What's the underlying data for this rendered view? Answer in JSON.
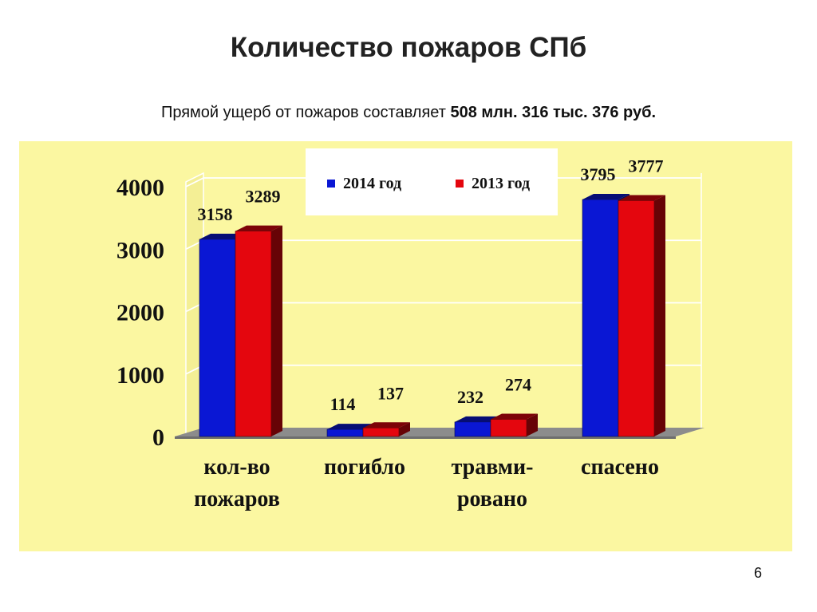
{
  "slide": {
    "title": "Количество пожаров СПб",
    "subtitle_prefix": "Прямой ущерб от пожаров составляет ",
    "subtitle_value": "508 млн. 316 тыс. 376 руб.",
    "page_number": "6"
  },
  "chart_data": {
    "type": "bar",
    "categories": [
      [
        "кол-во",
        "пожаров"
      ],
      [
        "погибло"
      ],
      [
        "травми-",
        "ровано"
      ],
      [
        "спасено"
      ]
    ],
    "series": [
      {
        "name": "2014 год",
        "color": "#0a17d4",
        "values": [
          3158,
          114,
          232,
          3795
        ]
      },
      {
        "name": "2013 год",
        "color": "#e4060e",
        "values": [
          3289,
          137,
          274,
          3777
        ]
      }
    ],
    "yticks": [
      0,
      1000,
      2000,
      3000,
      4000
    ],
    "ylim": [
      0,
      4000
    ],
    "grid": true,
    "legend_position": "top",
    "panel_color": "#fbf7a1",
    "grid_color": "#ffffff"
  }
}
